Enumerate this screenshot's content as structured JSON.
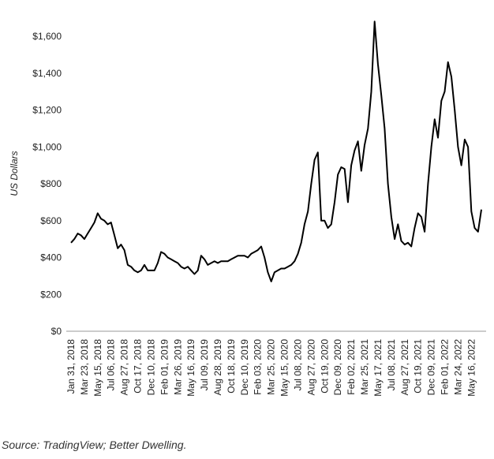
{
  "chart_data": {
    "type": "line",
    "y_label": "US Dollars",
    "source": "Source: TradingView; Better Dwelling.",
    "color": "#000000",
    "ylim": [
      0,
      1600
    ],
    "yticks": [
      {
        "value": 0,
        "label": "$0"
      },
      {
        "value": 200,
        "label": "$200"
      },
      {
        "value": 400,
        "label": "$400"
      },
      {
        "value": 600,
        "label": "$600"
      },
      {
        "value": 800,
        "label": "$800"
      },
      {
        "value": 1000,
        "label": "$1,000"
      },
      {
        "value": 1200,
        "label": "$1,200"
      },
      {
        "value": 1400,
        "label": "$1,400"
      },
      {
        "value": 1600,
        "label": "$1,600"
      }
    ],
    "categories": [
      "Jan 31, 2018",
      null,
      null,
      null,
      "Mar 23, 2018",
      null,
      null,
      null,
      "May 15, 2018",
      null,
      null,
      null,
      "Jul 06, 2018",
      null,
      null,
      null,
      "Aug 27, 2018",
      null,
      null,
      null,
      "Oct 17, 2018",
      null,
      null,
      null,
      "Dec 10, 2018",
      null,
      null,
      null,
      "Feb 01, 2019",
      null,
      null,
      null,
      "Mar 26, 2019",
      null,
      null,
      null,
      "May 16, 2019",
      null,
      null,
      null,
      "Jul 09, 2019",
      null,
      null,
      null,
      "Aug 28, 2019",
      null,
      null,
      null,
      "Oct 18, 2019",
      null,
      null,
      null,
      "Dec 10, 2019",
      null,
      null,
      null,
      "Feb 03, 2020",
      null,
      null,
      null,
      "Mar 25, 2020",
      null,
      null,
      null,
      "May 15, 2020",
      null,
      null,
      null,
      "Jul 08, 2020",
      null,
      null,
      null,
      "Aug 27, 2020",
      null,
      null,
      null,
      "Oct 19, 2020",
      null,
      null,
      null,
      "Dec 09, 2020",
      null,
      null,
      null,
      "Feb 02, 2021",
      null,
      null,
      null,
      "Mar 25, 2021",
      null,
      null,
      null,
      "May 17, 2021",
      null,
      null,
      null,
      "Jul 08, 2021",
      null,
      null,
      null,
      "Aug 27, 2021",
      null,
      null,
      null,
      "Oct 19, 2021",
      null,
      null,
      null,
      "Dec 09, 2021",
      null,
      null,
      null,
      "Feb 01, 2022",
      null,
      null,
      null,
      "Mar 24, 2022",
      null,
      null,
      null,
      "May 16, 2022",
      null,
      null,
      null
    ],
    "values": [
      480,
      500,
      530,
      520,
      500,
      530,
      560,
      590,
      640,
      610,
      600,
      580,
      590,
      520,
      450,
      470,
      440,
      360,
      350,
      330,
      320,
      330,
      360,
      330,
      330,
      330,
      370,
      430,
      420,
      400,
      390,
      380,
      370,
      350,
      340,
      350,
      330,
      310,
      330,
      410,
      390,
      360,
      370,
      380,
      370,
      380,
      380,
      380,
      390,
      400,
      410,
      410,
      410,
      400,
      420,
      430,
      440,
      460,
      400,
      320,
      270,
      320,
      330,
      340,
      340,
      350,
      360,
      380,
      420,
      480,
      580,
      650,
      800,
      930,
      970,
      600,
      600,
      560,
      580,
      700,
      850,
      890,
      880,
      700,
      900,
      980,
      1030,
      870,
      1010,
      1100,
      1300,
      1680,
      1450,
      1280,
      1100,
      800,
      620,
      500,
      580,
      490,
      470,
      480,
      460,
      560,
      640,
      620,
      540,
      800,
      1000,
      1150,
      1050,
      1250,
      1300,
      1460,
      1380,
      1200,
      1000,
      900,
      1040,
      1000,
      650,
      560,
      540,
      660
    ]
  }
}
